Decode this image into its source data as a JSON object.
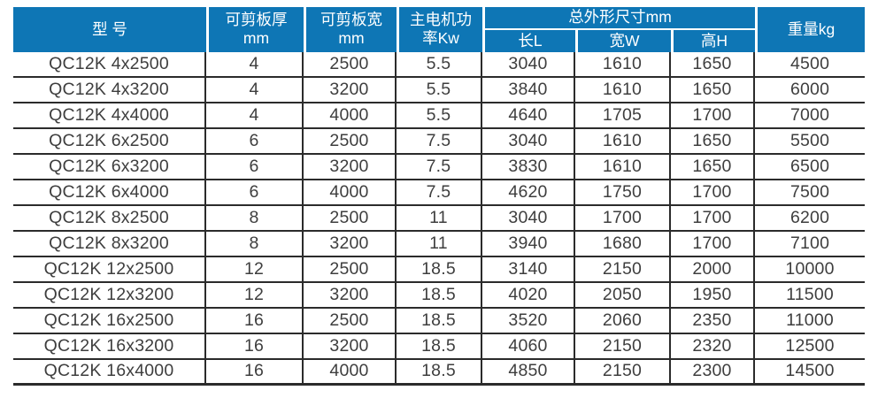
{
  "table": {
    "title_semantic": "QC12K shearing machine specification table",
    "header": {
      "model": "型 号",
      "thickness": "可剪板厚\nmm",
      "plate_width": "可剪板宽\nmm",
      "motor_power": "主电机功\n率Kw",
      "dimensions_group": "总外形尺寸mm",
      "length": "长L",
      "width": "宽W",
      "height": "高H",
      "weight": "重量kg"
    },
    "rows": [
      [
        "QC12K 4x2500",
        "4",
        "2500",
        "5.5",
        "3040",
        "1610",
        "1650",
        "4500"
      ],
      [
        "QC12K 4x3200",
        "4",
        "3200",
        "5.5",
        "3840",
        "1610",
        "1650",
        "6000"
      ],
      [
        "QC12K 4x4000",
        "4",
        "4000",
        "5.5",
        "4640",
        "1705",
        "1700",
        "7000"
      ],
      [
        "QC12K 6x2500",
        "6",
        "2500",
        "7.5",
        "3040",
        "1610",
        "1650",
        "5500"
      ],
      [
        "QC12K 6x3200",
        "6",
        "3200",
        "7.5",
        "3830",
        "1610",
        "1650",
        "6500"
      ],
      [
        "QC12K 6x4000",
        "6",
        "4000",
        "7.5",
        "4620",
        "1750",
        "1700",
        "7500"
      ],
      [
        "QC12K 8x2500",
        "8",
        "2500",
        "11",
        "3040",
        "1700",
        "1700",
        "6200"
      ],
      [
        "QC12K 8x3200",
        "8",
        "3200",
        "11",
        "3940",
        "1680",
        "1700",
        "7100"
      ],
      [
        "QC12K 12x2500",
        "12",
        "2500",
        "18.5",
        "3140",
        "2150",
        "2000",
        "10000"
      ],
      [
        "QC12K 12x3200",
        "12",
        "3200",
        "18.5",
        "4020",
        "2050",
        "1950",
        "11500"
      ],
      [
        "QC12K 16x2500",
        "16",
        "2500",
        "18.5",
        "3520",
        "2060",
        "2350",
        "11000"
      ],
      [
        "QC12K 16x3200",
        "16",
        "3200",
        "18.5",
        "4060",
        "2150",
        "2320",
        "12500"
      ],
      [
        "QC12K 16x4000",
        "16",
        "4000",
        "18.5",
        "4850",
        "2150",
        "2300",
        "14500"
      ]
    ]
  },
  "colors": {
    "header_bg": "#0e76b5",
    "header_text": "#ffffff",
    "body_text": "#3e3e3e",
    "border": "#2b2b2b"
  }
}
